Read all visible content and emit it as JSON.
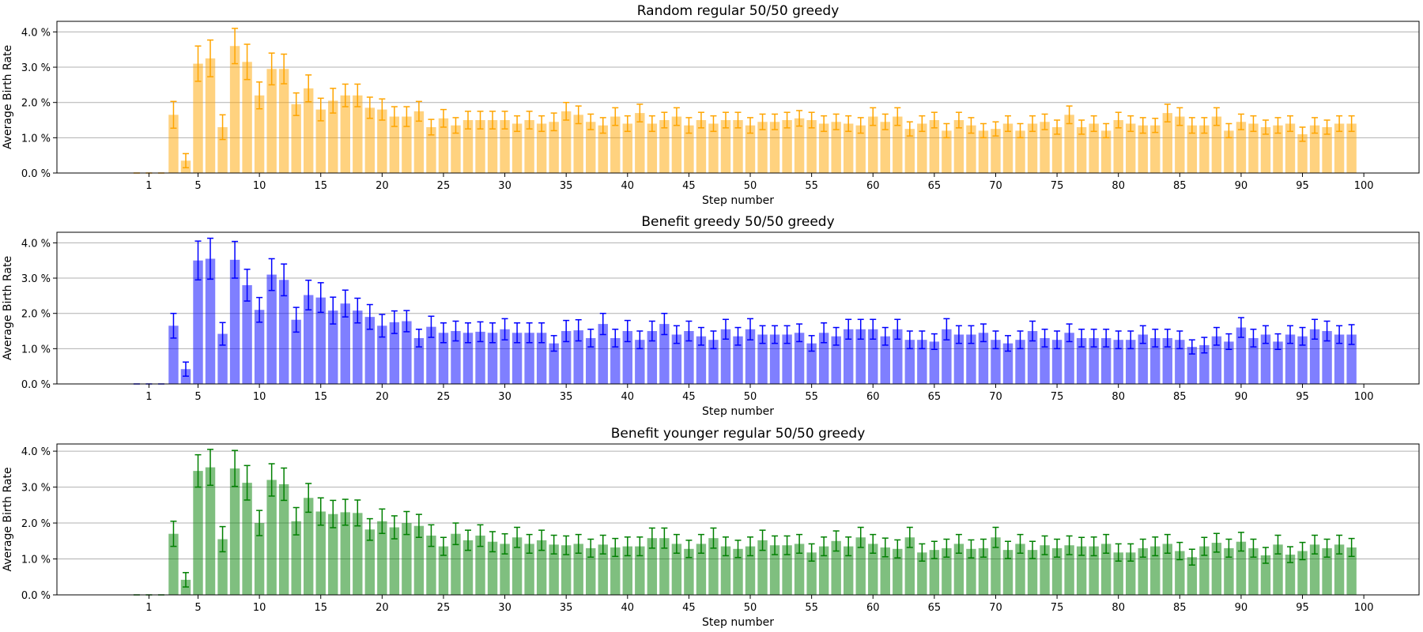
{
  "chart_data": [
    {
      "type": "bar",
      "title": "Random regular 50/50 greedy",
      "xlabel": "Step number",
      "ylabel": "Average Birth Rate",
      "x": [
        0,
        1,
        2,
        3,
        4,
        5,
        6,
        7,
        8,
        9,
        10,
        11,
        12,
        13,
        14,
        15,
        16,
        17,
        18,
        19,
        20,
        21,
        22,
        23,
        24,
        25,
        26,
        27,
        28,
        29,
        30,
        31,
        32,
        33,
        34,
        35,
        36,
        37,
        38,
        39,
        40,
        41,
        42,
        43,
        44,
        45,
        46,
        47,
        48,
        49,
        50,
        51,
        52,
        53,
        54,
        55,
        56,
        57,
        58,
        59,
        60,
        61,
        62,
        63,
        64,
        65,
        66,
        67,
        68,
        69,
        70,
        71,
        72,
        73,
        74,
        75,
        76,
        77,
        78,
        79,
        80,
        81,
        82,
        83,
        84,
        85,
        86,
        87,
        88,
        89,
        90,
        91,
        92,
        93,
        94,
        95,
        96,
        97,
        98,
        99
      ],
      "xticks": [
        1,
        5,
        10,
        15,
        20,
        25,
        30,
        35,
        40,
        45,
        50,
        55,
        60,
        65,
        70,
        75,
        80,
        85,
        90,
        95,
        100
      ],
      "xlim": [
        -6.5,
        104.5
      ],
      "ylim": [
        0,
        4.3
      ],
      "yticks": [
        0.0,
        1.0,
        2.0,
        3.0,
        4.0
      ],
      "ytick_labels": [
        "0.0 %",
        "1.0 %",
        "2.0 %",
        "3.0 %",
        "4.0 %"
      ],
      "grid": "y",
      "color": "#ffa500",
      "bar_opacity": 0.5,
      "values": [
        0,
        0,
        0,
        1.65,
        0.35,
        3.1,
        3.25,
        1.3,
        3.6,
        3.15,
        2.2,
        2.95,
        2.95,
        1.95,
        2.4,
        1.8,
        2.05,
        2.2,
        2.2,
        1.85,
        1.8,
        1.6,
        1.6,
        1.75,
        1.3,
        1.55,
        1.35,
        1.5,
        1.5,
        1.5,
        1.5,
        1.4,
        1.5,
        1.4,
        1.45,
        1.75,
        1.65,
        1.45,
        1.35,
        1.6,
        1.4,
        1.7,
        1.4,
        1.5,
        1.6,
        1.35,
        1.5,
        1.4,
        1.5,
        1.5,
        1.35,
        1.45,
        1.45,
        1.5,
        1.55,
        1.5,
        1.4,
        1.45,
        1.4,
        1.35,
        1.6,
        1.45,
        1.6,
        1.25,
        1.4,
        1.5,
        1.2,
        1.5,
        1.35,
        1.2,
        1.25,
        1.4,
        1.2,
        1.4,
        1.45,
        1.3,
        1.65,
        1.3,
        1.4,
        1.2,
        1.5,
        1.4,
        1.35,
        1.35,
        1.7,
        1.6,
        1.35,
        1.35,
        1.6,
        1.2,
        1.45,
        1.4,
        1.3,
        1.35,
        1.4,
        1.1,
        1.35,
        1.3,
        1.4,
        1.4
      ],
      "errors": [
        0,
        0,
        0,
        0.38,
        0.2,
        0.5,
        0.52,
        0.35,
        0.5,
        0.5,
        0.38,
        0.45,
        0.42,
        0.32,
        0.38,
        0.32,
        0.35,
        0.32,
        0.32,
        0.3,
        0.3,
        0.28,
        0.28,
        0.28,
        0.22,
        0.25,
        0.22,
        0.25,
        0.25,
        0.25,
        0.25,
        0.22,
        0.25,
        0.22,
        0.25,
        0.25,
        0.25,
        0.22,
        0.22,
        0.25,
        0.22,
        0.25,
        0.22,
        0.22,
        0.25,
        0.22,
        0.22,
        0.22,
        0.22,
        0.22,
        0.22,
        0.22,
        0.22,
        0.22,
        0.22,
        0.22,
        0.22,
        0.22,
        0.22,
        0.22,
        0.25,
        0.22,
        0.25,
        0.2,
        0.22,
        0.22,
        0.2,
        0.22,
        0.22,
        0.2,
        0.2,
        0.22,
        0.2,
        0.22,
        0.22,
        0.2,
        0.25,
        0.2,
        0.22,
        0.2,
        0.22,
        0.22,
        0.22,
        0.2,
        0.25,
        0.25,
        0.22,
        0.22,
        0.25,
        0.2,
        0.22,
        0.22,
        0.2,
        0.22,
        0.22,
        0.2,
        0.22,
        0.2,
        0.22,
        0.22
      ]
    },
    {
      "type": "bar",
      "title": "Benefit greedy 50/50 greedy",
      "xlabel": "Step number",
      "ylabel": "Average Birth Rate",
      "x": [
        0,
        1,
        2,
        3,
        4,
        5,
        6,
        7,
        8,
        9,
        10,
        11,
        12,
        13,
        14,
        15,
        16,
        17,
        18,
        19,
        20,
        21,
        22,
        23,
        24,
        25,
        26,
        27,
        28,
        29,
        30,
        31,
        32,
        33,
        34,
        35,
        36,
        37,
        38,
        39,
        40,
        41,
        42,
        43,
        44,
        45,
        46,
        47,
        48,
        49,
        50,
        51,
        52,
        53,
        54,
        55,
        56,
        57,
        58,
        59,
        60,
        61,
        62,
        63,
        64,
        65,
        66,
        67,
        68,
        69,
        70,
        71,
        72,
        73,
        74,
        75,
        76,
        77,
        78,
        79,
        80,
        81,
        82,
        83,
        84,
        85,
        86,
        87,
        88,
        89,
        90,
        91,
        92,
        93,
        94,
        95,
        96,
        97,
        98,
        99
      ],
      "xticks": [
        1,
        5,
        10,
        15,
        20,
        25,
        30,
        35,
        40,
        45,
        50,
        55,
        60,
        65,
        70,
        75,
        80,
        85,
        90,
        95,
        100
      ],
      "xlim": [
        -6.5,
        104.5
      ],
      "ylim": [
        0,
        4.3
      ],
      "yticks": [
        0.0,
        1.0,
        2.0,
        3.0,
        4.0
      ],
      "ytick_labels": [
        "0.0 %",
        "1.0 %",
        "2.0 %",
        "3.0 %",
        "4.0 %"
      ],
      "grid": "y",
      "color": "#0000ff",
      "bar_opacity": 0.5,
      "values": [
        0,
        0,
        0,
        1.65,
        0.42,
        3.5,
        3.55,
        1.42,
        3.52,
        2.8,
        2.1,
        3.1,
        2.95,
        1.82,
        2.52,
        2.45,
        2.08,
        2.28,
        2.08,
        1.9,
        1.65,
        1.75,
        1.78,
        1.3,
        1.62,
        1.45,
        1.5,
        1.45,
        1.48,
        1.45,
        1.55,
        1.45,
        1.45,
        1.45,
        1.15,
        1.5,
        1.52,
        1.3,
        1.7,
        1.3,
        1.5,
        1.25,
        1.5,
        1.7,
        1.4,
        1.5,
        1.35,
        1.25,
        1.55,
        1.35,
        1.55,
        1.4,
        1.4,
        1.4,
        1.45,
        1.15,
        1.45,
        1.35,
        1.55,
        1.55,
        1.55,
        1.35,
        1.55,
        1.25,
        1.25,
        1.2,
        1.55,
        1.4,
        1.4,
        1.45,
        1.25,
        1.15,
        1.25,
        1.5,
        1.3,
        1.25,
        1.45,
        1.3,
        1.3,
        1.3,
        1.25,
        1.25,
        1.4,
        1.3,
        1.3,
        1.25,
        1.05,
        1.1,
        1.35,
        1.2,
        1.6,
        1.3,
        1.4,
        1.2,
        1.4,
        1.35,
        1.55,
        1.5,
        1.4,
        1.4
      ],
      "errors": [
        0,
        0,
        0,
        0.35,
        0.2,
        0.55,
        0.58,
        0.32,
        0.52,
        0.45,
        0.35,
        0.45,
        0.45,
        0.35,
        0.42,
        0.42,
        0.38,
        0.38,
        0.35,
        0.35,
        0.32,
        0.32,
        0.3,
        0.25,
        0.3,
        0.28,
        0.28,
        0.28,
        0.28,
        0.28,
        0.3,
        0.28,
        0.28,
        0.28,
        0.22,
        0.3,
        0.3,
        0.25,
        0.3,
        0.25,
        0.3,
        0.25,
        0.28,
        0.3,
        0.25,
        0.28,
        0.25,
        0.25,
        0.28,
        0.25,
        0.3,
        0.25,
        0.25,
        0.25,
        0.25,
        0.22,
        0.28,
        0.25,
        0.28,
        0.28,
        0.28,
        0.25,
        0.28,
        0.25,
        0.25,
        0.22,
        0.3,
        0.25,
        0.25,
        0.25,
        0.25,
        0.22,
        0.25,
        0.28,
        0.25,
        0.25,
        0.25,
        0.25,
        0.25,
        0.25,
        0.25,
        0.25,
        0.25,
        0.25,
        0.25,
        0.25,
        0.2,
        0.22,
        0.25,
        0.22,
        0.28,
        0.25,
        0.25,
        0.22,
        0.25,
        0.25,
        0.28,
        0.28,
        0.25,
        0.28
      ]
    },
    {
      "type": "bar",
      "title": "Benefit younger regular 50/50 greedy",
      "xlabel": "Step number",
      "ylabel": "Average Birth Rate",
      "x": [
        0,
        1,
        2,
        3,
        4,
        5,
        6,
        7,
        8,
        9,
        10,
        11,
        12,
        13,
        14,
        15,
        16,
        17,
        18,
        19,
        20,
        21,
        22,
        23,
        24,
        25,
        26,
        27,
        28,
        29,
        30,
        31,
        32,
        33,
        34,
        35,
        36,
        37,
        38,
        39,
        40,
        41,
        42,
        43,
        44,
        45,
        46,
        47,
        48,
        49,
        50,
        51,
        52,
        53,
        54,
        55,
        56,
        57,
        58,
        59,
        60,
        61,
        62,
        63,
        64,
        65,
        66,
        67,
        68,
        69,
        70,
        71,
        72,
        73,
        74,
        75,
        76,
        77,
        78,
        79,
        80,
        81,
        82,
        83,
        84,
        85,
        86,
        87,
        88,
        89,
        90,
        91,
        92,
        93,
        94,
        95,
        96,
        97,
        98,
        99
      ],
      "xticks": [
        1,
        5,
        10,
        15,
        20,
        25,
        30,
        35,
        40,
        45,
        50,
        55,
        60,
        65,
        70,
        75,
        80,
        85,
        90,
        95,
        100
      ],
      "xlim": [
        -6.5,
        104.5
      ],
      "ylim": [
        0,
        4.2
      ],
      "yticks": [
        0.0,
        1.0,
        2.0,
        3.0,
        4.0
      ],
      "ytick_labels": [
        "0.0 %",
        "1.0 %",
        "2.0 %",
        "3.0 %",
        "4.0 %"
      ],
      "grid": "y",
      "color": "#008000",
      "bar_opacity": 0.5,
      "values": [
        0,
        0,
        0,
        1.7,
        0.42,
        3.45,
        3.55,
        1.55,
        3.52,
        3.12,
        2.0,
        3.2,
        3.08,
        2.05,
        2.7,
        2.32,
        2.25,
        2.3,
        2.28,
        1.82,
        2.05,
        1.88,
        2.0,
        1.92,
        1.65,
        1.35,
        1.7,
        1.52,
        1.65,
        1.48,
        1.42,
        1.6,
        1.42,
        1.52,
        1.4,
        1.38,
        1.42,
        1.3,
        1.4,
        1.32,
        1.35,
        1.35,
        1.58,
        1.58,
        1.42,
        1.28,
        1.42,
        1.58,
        1.35,
        1.28,
        1.35,
        1.52,
        1.38,
        1.38,
        1.42,
        1.18,
        1.35,
        1.5,
        1.35,
        1.6,
        1.42,
        1.32,
        1.28,
        1.6,
        1.18,
        1.25,
        1.3,
        1.42,
        1.28,
        1.3,
        1.6,
        1.25,
        1.42,
        1.25,
        1.38,
        1.3,
        1.38,
        1.35,
        1.35,
        1.42,
        1.18,
        1.18,
        1.3,
        1.35,
        1.42,
        1.22,
        1.05,
        1.35,
        1.45,
        1.3,
        1.48,
        1.3,
        1.1,
        1.4,
        1.12,
        1.22,
        1.4,
        1.3,
        1.4,
        1.32
      ],
      "errors": [
        0,
        0,
        0,
        0.35,
        0.2,
        0.45,
        0.5,
        0.35,
        0.5,
        0.48,
        0.35,
        0.45,
        0.45,
        0.38,
        0.4,
        0.38,
        0.38,
        0.36,
        0.36,
        0.3,
        0.34,
        0.32,
        0.32,
        0.32,
        0.3,
        0.25,
        0.3,
        0.28,
        0.3,
        0.28,
        0.28,
        0.28,
        0.26,
        0.28,
        0.26,
        0.26,
        0.26,
        0.25,
        0.26,
        0.25,
        0.26,
        0.26,
        0.28,
        0.28,
        0.26,
        0.24,
        0.26,
        0.28,
        0.26,
        0.24,
        0.26,
        0.28,
        0.26,
        0.26,
        0.26,
        0.24,
        0.26,
        0.28,
        0.26,
        0.28,
        0.26,
        0.26,
        0.25,
        0.28,
        0.24,
        0.24,
        0.25,
        0.26,
        0.25,
        0.25,
        0.28,
        0.24,
        0.26,
        0.24,
        0.26,
        0.25,
        0.26,
        0.25,
        0.26,
        0.26,
        0.24,
        0.24,
        0.25,
        0.26,
        0.26,
        0.24,
        0.22,
        0.25,
        0.26,
        0.25,
        0.26,
        0.25,
        0.22,
        0.26,
        0.22,
        0.24,
        0.26,
        0.25,
        0.26,
        0.25
      ]
    }
  ]
}
